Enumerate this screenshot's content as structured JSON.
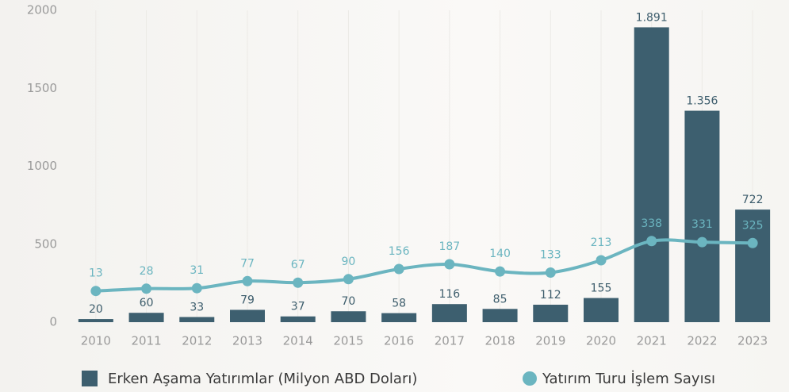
{
  "chart_data": {
    "type": "bar",
    "categories": [
      "2010",
      "2011",
      "2012",
      "2013",
      "2014",
      "2015",
      "2016",
      "2017",
      "2018",
      "2019",
      "2020",
      "2021",
      "2022",
      "2023"
    ],
    "series": [
      {
        "name": "Erken Aşama Yatırımlar (Milyon ABD Doları)",
        "type": "bar",
        "color": "#3d5f6f",
        "values": [
          20,
          60,
          33,
          79,
          37,
          70,
          58,
          116,
          85,
          112,
          155,
          1891,
          1356,
          722
        ],
        "value_labels": [
          "20",
          "60",
          "33",
          "79",
          "37",
          "70",
          "58",
          "116",
          "85",
          "112",
          "155",
          "1.891",
          "1.356",
          "722"
        ]
      },
      {
        "name": "Yatırım Turu İşlem Sayısı",
        "type": "line",
        "axis": "y2",
        "color": "#6bb5c0",
        "values": [
          13,
          28,
          31,
          77,
          67,
          90,
          156,
          187,
          140,
          133,
          213,
          338,
          331,
          325
        ]
      }
    ],
    "ylim": [
      0,
      2000
    ],
    "yticks": [
      0,
      500,
      1000,
      1500,
      2000
    ],
    "y2lim": [
      -190,
      1840
    ],
    "legend": "bottom"
  }
}
